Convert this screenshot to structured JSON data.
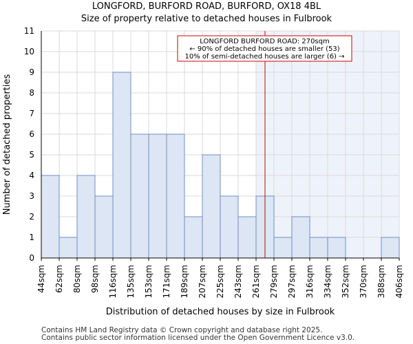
{
  "chart_data": {
    "type": "bar",
    "title": "LONGFORD, BURFORD ROAD, BURFORD, OX18 4BL",
    "subtitle": "Size of property relative to detached houses in Fulbrook",
    "xlabel": "Distribution of detached houses by size in Fulbrook",
    "ylabel": "Number of detached properties",
    "ylim": [
      0,
      11
    ],
    "yticks": [
      "0",
      "1",
      "2",
      "3",
      "4",
      "5",
      "6",
      "7",
      "8",
      "9",
      "10",
      "11"
    ],
    "bin_edges": [
      "44sqm",
      "62sqm",
      "80sqm",
      "98sqm",
      "116sqm",
      "135sqm",
      "153sqm",
      "171sqm",
      "189sqm",
      "207sqm",
      "225sqm",
      "243sqm",
      "261sqm",
      "279sqm",
      "297sqm",
      "316sqm",
      "334sqm",
      "352sqm",
      "370sqm",
      "388sqm",
      "406sqm"
    ],
    "values": [
      4,
      1,
      4,
      3,
      9,
      6,
      6,
      6,
      2,
      5,
      3,
      2,
      3,
      1,
      2,
      1,
      1,
      0,
      0,
      1
    ],
    "highlight_from_bin": 12,
    "marker": {
      "value_sqm": 270,
      "bin_position": 12.5,
      "color": "#cc0000"
    },
    "annotation": {
      "line1": "LONGFORD BURFORD ROAD: 270sqm",
      "line2": "← 90% of detached houses are smaller (53)",
      "line3": "10% of semi-detached houses are larger (6) →"
    },
    "colors": {
      "bar_fill": "#dce6f4",
      "bar_stroke": "#6f8fbf",
      "highlight_bg": "#eef2fb",
      "grid": "#d9d9d9"
    }
  },
  "footer": {
    "line1": "Contains HM Land Registry data © Crown copyright and database right 2025.",
    "line2": "Contains public sector information licensed under the Open Government Licence v3.0."
  }
}
